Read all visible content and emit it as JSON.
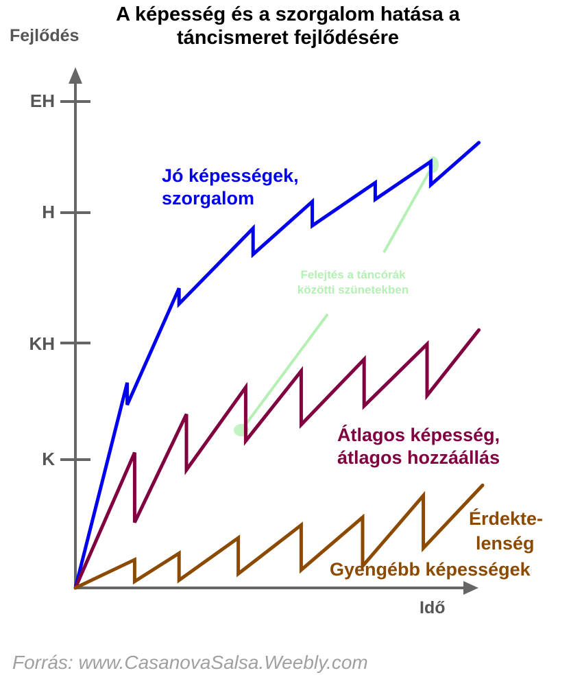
{
  "chart_data": {
    "type": "line",
    "title_lines": [
      "A képesség és a szorgalom hatása a",
      "táncismeret fejlődésére"
    ],
    "xlabel": "Idő",
    "ylabel": "Fejlődés",
    "y_tick_labels": [
      "K",
      "KH",
      "H",
      "EH"
    ],
    "y_tick_values": [
      1,
      2,
      3,
      4
    ],
    "series": [
      {
        "name": "Jó képességek, szorgalom",
        "label_lines": [
          "Jó képességek,",
          "szorgalom"
        ],
        "color": "#0000ee",
        "points": [
          [
            0,
            0
          ],
          [
            0.7,
            1.66
          ],
          [
            0.7,
            1.47
          ],
          [
            1.4,
            2.42
          ],
          [
            1.4,
            2.3
          ],
          [
            2.4,
            2.88
          ],
          [
            2.4,
            2.68
          ],
          [
            3.2,
            3.1
          ],
          [
            3.2,
            2.9
          ],
          [
            4.05,
            3.27
          ],
          [
            4.05,
            3.12
          ],
          [
            4.8,
            3.46
          ],
          [
            4.8,
            3.25
          ],
          [
            5.45,
            3.63
          ]
        ]
      },
      {
        "name": "Átlagos képesség, átlagos hozzáállás",
        "label_lines": [
          "Átlagos képesség,",
          "átlagos hozzáállás"
        ],
        "color": "#800040",
        "points": [
          [
            0,
            0
          ],
          [
            0.8,
            1.06
          ],
          [
            0.8,
            0.51
          ],
          [
            1.5,
            1.39
          ],
          [
            1.5,
            0.92
          ],
          [
            2.3,
            1.62
          ],
          [
            2.3,
            1.16
          ],
          [
            3.05,
            1.76
          ],
          [
            3.05,
            1.3
          ],
          [
            3.9,
            1.86
          ],
          [
            3.9,
            1.46
          ],
          [
            4.75,
            1.99
          ],
          [
            4.75,
            1.55
          ],
          [
            5.45,
            2.1
          ]
        ]
      },
      {
        "name": "Gyengébb képességek",
        "label_lines": [
          "Érdekte-",
          "lenség",
          "Gyengébb képességek"
        ],
        "color": "#8b4a00",
        "points": [
          [
            0,
            0
          ],
          [
            0.8,
            0.22
          ],
          [
            0.8,
            0.05
          ],
          [
            1.4,
            0.27
          ],
          [
            1.4,
            0.06
          ],
          [
            2.2,
            0.39
          ],
          [
            2.2,
            0.11
          ],
          [
            3.05,
            0.49
          ],
          [
            3.05,
            0.14
          ],
          [
            3.88,
            0.55
          ],
          [
            3.88,
            0.17
          ],
          [
            4.7,
            0.72
          ],
          [
            4.7,
            0.31
          ],
          [
            5.5,
            0.8
          ]
        ]
      }
    ],
    "annotation": {
      "text_lines": [
        "Felejtés a táncórák",
        "közötti szünetekben"
      ],
      "color": "#b4f0b4"
    },
    "source": "Forrás: www.CasanovaSalsa.Weebly.com",
    "axis_color": "#666666"
  }
}
